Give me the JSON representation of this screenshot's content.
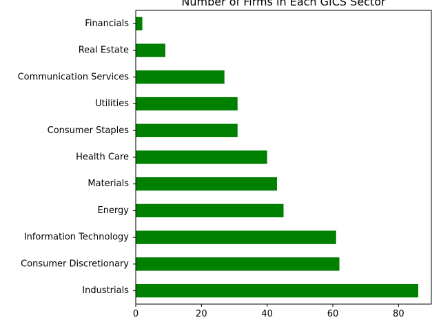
{
  "chart_data": {
    "type": "bar",
    "orientation": "horizontal",
    "title": "Number of Firms in Each GICS Sector",
    "xlabel": "",
    "ylabel": "",
    "categories": [
      "Financials",
      "Real Estate",
      "Communication Services",
      "Utilities",
      "Consumer Staples",
      "Health Care",
      "Materials",
      "Energy",
      "Information Technology",
      "Consumer Discretionary",
      "Industrials"
    ],
    "values": [
      2,
      9,
      27,
      31,
      31,
      40,
      43,
      45,
      61,
      62,
      86
    ],
    "xlim": [
      0,
      90
    ],
    "xticks": [
      0,
      20,
      40,
      60,
      80
    ],
    "bar_color": "#008000",
    "grid": false,
    "legend": "none"
  }
}
